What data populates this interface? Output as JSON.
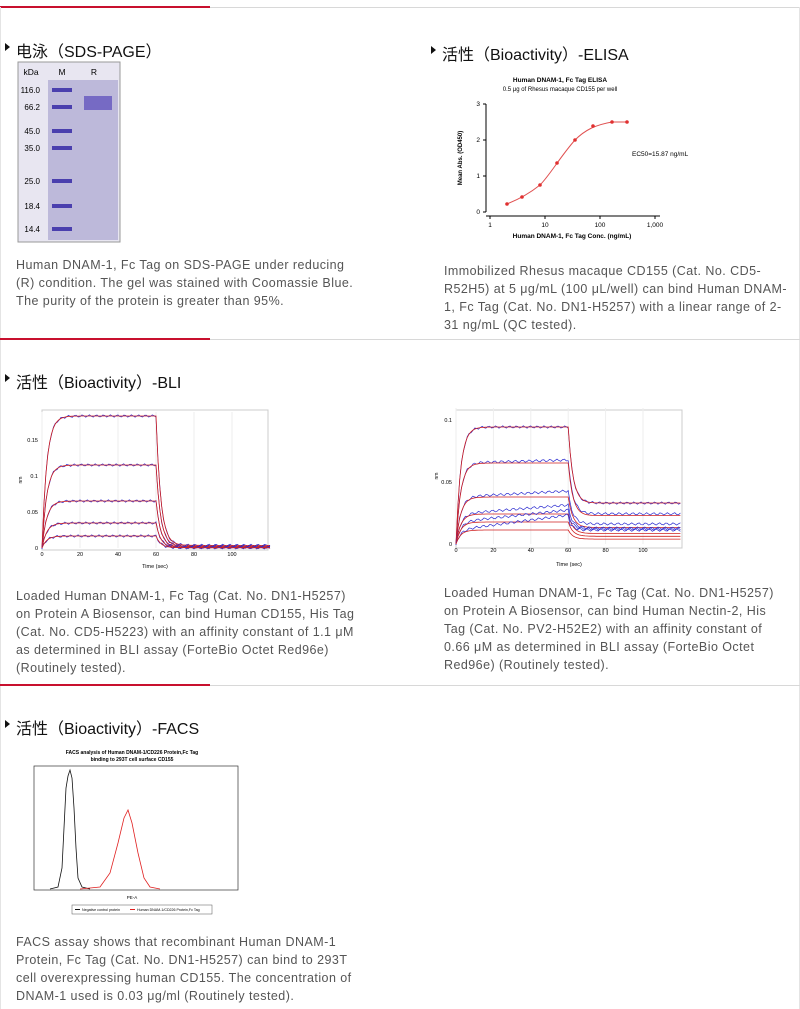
{
  "sections": [
    {
      "panels": [
        {
          "title": "电泳（SDS-PAGE）",
          "figure": {
            "header": [
              "kDa",
              "M",
              "R"
            ],
            "markers": [
              "116.0",
              "66.2",
              "45.0",
              "35.0",
              "25.0",
              "18.4",
              "14.4"
            ]
          },
          "caption": "Human DNAM-1, Fc Tag on SDS-PAGE under reducing (R) condition. The gel was stained with Coomassie Blue. The purity of the protein is greater than 95%."
        },
        {
          "title": "活性（Bioactivity）-ELISA",
          "figure": {
            "title": "Human DNAM-1, Fc Tag ELISA",
            "subtitle": "0.5 μg of Rhesus macaque CD155 per well",
            "ylabel": "Mean Abs. (OD450)",
            "xlabel": "Human DNAM-1, Fc Tag Conc. (ng/mL)",
            "yticks": [
              "0",
              "1",
              "2",
              "3"
            ],
            "xticks": [
              "1",
              "10",
              "100",
              "1,000"
            ],
            "annotation": "EC50=15.87 ng/mL"
          },
          "caption": "Immobilized Rhesus macaque CD155 (Cat. No. CD5-R52H5) at 5 μg/mL (100 μL/well) can bind Human DNAM-1, Fc Tag (Cat. No. DN1-H5257) with a linear range of 2-31 ng/mL (QC tested)."
        }
      ]
    },
    {
      "panels": [
        {
          "title": "活性（Bioactivity）-BLI",
          "figure": {
            "ylabel": "nm",
            "xlabel": "Time (sec)",
            "yticks": [
              "0",
              "0.05",
              "0.1",
              "0.15"
            ],
            "xticks": [
              "0",
              "20",
              "40",
              "60",
              "80",
              "100"
            ]
          },
          "caption": "Loaded Human DNAM-1, Fc Tag (Cat. No. DN1-H5257) on Protein A Biosensor, can bind Human CD155, His Tag (Cat. No. CD5-H5223) with an affinity constant of 1.1 μM as determined in BLI assay (ForteBio Octet Red96e) (Routinely tested)."
        },
        {
          "figure": {
            "ylabel": "nm",
            "xlabel": "Time (sec)",
            "yticks": [
              "0",
              "0.05",
              "0.1"
            ],
            "xticks": [
              "0",
              "20",
              "40",
              "60",
              "80",
              "100"
            ]
          },
          "caption": "Loaded Human DNAM-1, Fc Tag (Cat. No. DN1-H5257) on Protein A Biosensor, can bind Human Nectin-2, His Tag (Cat. No. PV2-H52E2) with an affinity constant of 0.66 μM as determined in BLI assay (ForteBio Octet Red96e) (Routinely tested)."
        }
      ]
    },
    {
      "panels": [
        {
          "title": "活性（Bioactivity）-FACS",
          "figure": {
            "title": [
              "FACS analysis of Human DNAM-1/CD226 Protein,Fc Tag",
              "binding to 293T cell surface CD155"
            ],
            "xlabel": "PE-A",
            "legend": [
              "Negative control protein",
              "Human DNAM-1/CD226 Protein,Fc Tag"
            ]
          },
          "caption": "FACS assay shows that recombinant Human DNAM-1 Protein, Fc Tag (Cat. No. DN1-H5257) can bind to 293T cell overexpressing human CD155. The concentration of DNAM-1 used is 0.03 μg/ml (Routinely tested)."
        }
      ]
    }
  ]
}
